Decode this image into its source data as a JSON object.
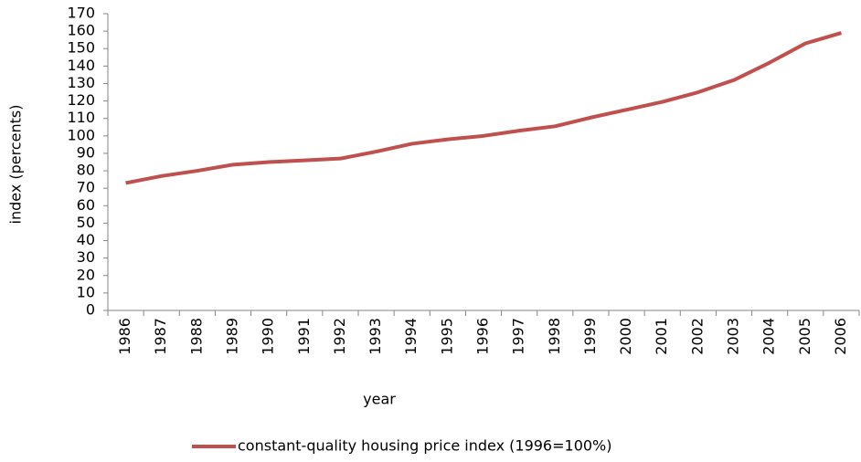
{
  "chart_data": {
    "type": "line",
    "xlabel": "year",
    "ylabel": "index (percents)",
    "categories": [
      "1986",
      "1987",
      "1988",
      "1989",
      "1990",
      "1991",
      "1992",
      "1993",
      "1994",
      "1995",
      "1996",
      "1997",
      "1998",
      "1999",
      "2000",
      "2001",
      "2002",
      "2003",
      "2004",
      "2005",
      "2006"
    ],
    "series": [
      {
        "name": "constant-quality housing price index (1996=100%)",
        "color": "#c0504d",
        "values": [
          73,
          77,
          80,
          83.5,
          85,
          86,
          87,
          91,
          95.5,
          98,
          100,
          103,
          105.5,
          110.5,
          115,
          119.5,
          125,
          132,
          142,
          153,
          159
        ]
      }
    ],
    "ylim": [
      0,
      170
    ],
    "yticks": [
      0,
      10,
      20,
      30,
      40,
      50,
      60,
      70,
      80,
      90,
      100,
      110,
      120,
      130,
      140,
      150,
      160,
      170
    ],
    "grid": false,
    "legend": "bottom"
  }
}
